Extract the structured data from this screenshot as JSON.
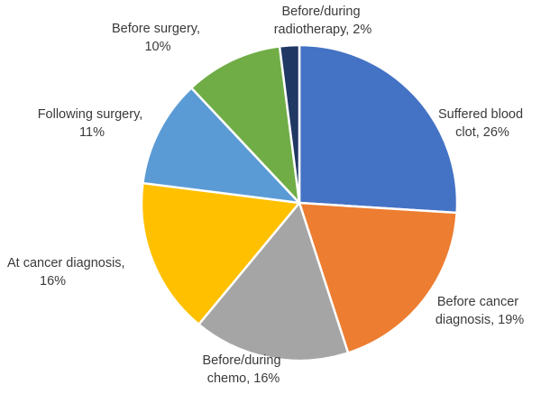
{
  "chart_data": {
    "type": "pie",
    "title": "",
    "start_angle_deg": 0,
    "direction": "clockwise",
    "slices": [
      {
        "label_lines": [
          "Suffered blood",
          "clot, 26%"
        ],
        "value": 26,
        "color": "#4472C4"
      },
      {
        "label_lines": [
          "Before cancer",
          "diagnosis, 19%"
        ],
        "value": 19,
        "color": "#ED7D31"
      },
      {
        "label_lines": [
          "Before/during",
          "chemo, 16%"
        ],
        "value": 16,
        "color": "#A5A5A5"
      },
      {
        "label_lines": [
          "At cancer diagnosis,",
          "16%"
        ],
        "value": 16,
        "color": "#FFC000"
      },
      {
        "label_lines": [
          "Following surgery,",
          "11%"
        ],
        "value": 11,
        "color": "#5B9BD5"
      },
      {
        "label_lines": [
          "Before surgery,",
          "10%"
        ],
        "value": 10,
        "color": "#70AD47"
      },
      {
        "label_lines": [
          "Before/during",
          "radiotherapy, 2%"
        ],
        "value": 2,
        "color": "#1F3864"
      }
    ]
  }
}
